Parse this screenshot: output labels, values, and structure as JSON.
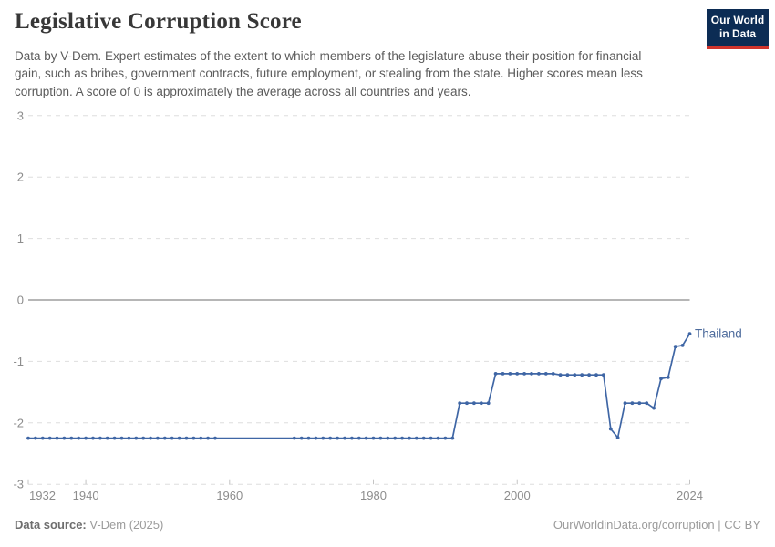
{
  "header": {
    "title": "Legislative Corruption Score",
    "subtitle": "Data by V-Dem. Expert estimates of the extent to which members of the legislature abuse their position for financial gain, such as bribes, government contracts, future employment, or stealing from the state. Higher scores mean less corruption. A score of 0 is approximately the average across all countries and years.",
    "logo": {
      "line1": "Our World",
      "line2": "in Data"
    }
  },
  "footer": {
    "source_label": "Data source:",
    "source_value": " V-Dem (2025)",
    "right_text": "OurWorldinData.org/corruption | CC BY"
  },
  "colors": {
    "series_line": "#3f66a5",
    "series_label": "#4d6b9c",
    "gridline": "#dedede",
    "zero_line": "#9e9e9e",
    "axis_label": "#8d8d8d",
    "tick_mark": "#c4c4c4",
    "logo_bg": "#0c2c54",
    "logo_stripe": "#d0342c",
    "title_text": "#373737",
    "subtitle_text": "#5b5b5b"
  },
  "chart_data": {
    "type": "line",
    "title": "Legislative Corruption Score",
    "xlabel": "",
    "ylabel": "",
    "xlim": [
      1932,
      2024
    ],
    "ylim": [
      -3,
      3
    ],
    "yticks": [
      3,
      2,
      1,
      0,
      -1,
      -2,
      -3
    ],
    "xticks": [
      1932,
      1940,
      1960,
      1980,
      2000,
      2024
    ],
    "grid": "horizontal-dashed",
    "zero_line": true,
    "legend_position": "end-of-line-label",
    "marker_gap_years": [
      1959,
      1968
    ],
    "series": [
      {
        "name": "Thailand",
        "color": "#3f66a5",
        "points": [
          [
            1932,
            -2.25
          ],
          [
            1933,
            -2.25
          ],
          [
            1934,
            -2.25
          ],
          [
            1935,
            -2.25
          ],
          [
            1936,
            -2.25
          ],
          [
            1937,
            -2.25
          ],
          [
            1938,
            -2.25
          ],
          [
            1939,
            -2.25
          ],
          [
            1940,
            -2.25
          ],
          [
            1941,
            -2.25
          ],
          [
            1942,
            -2.25
          ],
          [
            1943,
            -2.25
          ],
          [
            1944,
            -2.25
          ],
          [
            1945,
            -2.25
          ],
          [
            1946,
            -2.25
          ],
          [
            1947,
            -2.25
          ],
          [
            1948,
            -2.25
          ],
          [
            1949,
            -2.25
          ],
          [
            1950,
            -2.25
          ],
          [
            1951,
            -2.25
          ],
          [
            1952,
            -2.25
          ],
          [
            1953,
            -2.25
          ],
          [
            1954,
            -2.25
          ],
          [
            1955,
            -2.25
          ],
          [
            1956,
            -2.25
          ],
          [
            1957,
            -2.25
          ],
          [
            1958,
            -2.25
          ],
          [
            1959,
            -2.25
          ],
          [
            1960,
            -2.25
          ],
          [
            1961,
            -2.25
          ],
          [
            1962,
            -2.25
          ],
          [
            1963,
            -2.25
          ],
          [
            1964,
            -2.25
          ],
          [
            1965,
            -2.25
          ],
          [
            1966,
            -2.25
          ],
          [
            1967,
            -2.25
          ],
          [
            1968,
            -2.25
          ],
          [
            1969,
            -2.25
          ],
          [
            1970,
            -2.25
          ],
          [
            1971,
            -2.25
          ],
          [
            1972,
            -2.25
          ],
          [
            1973,
            -2.25
          ],
          [
            1974,
            -2.25
          ],
          [
            1975,
            -2.25
          ],
          [
            1976,
            -2.25
          ],
          [
            1977,
            -2.25
          ],
          [
            1978,
            -2.25
          ],
          [
            1979,
            -2.25
          ],
          [
            1980,
            -2.25
          ],
          [
            1981,
            -2.25
          ],
          [
            1982,
            -2.25
          ],
          [
            1983,
            -2.25
          ],
          [
            1984,
            -2.25
          ],
          [
            1985,
            -2.25
          ],
          [
            1986,
            -2.25
          ],
          [
            1987,
            -2.25
          ],
          [
            1988,
            -2.25
          ],
          [
            1989,
            -2.25
          ],
          [
            1990,
            -2.25
          ],
          [
            1991,
            -2.25
          ],
          [
            1992,
            -1.68
          ],
          [
            1993,
            -1.68
          ],
          [
            1994,
            -1.68
          ],
          [
            1995,
            -1.68
          ],
          [
            1996,
            -1.68
          ],
          [
            1997,
            -1.2
          ],
          [
            1998,
            -1.2
          ],
          [
            1999,
            -1.2
          ],
          [
            2000,
            -1.2
          ],
          [
            2001,
            -1.2
          ],
          [
            2002,
            -1.2
          ],
          [
            2003,
            -1.2
          ],
          [
            2004,
            -1.2
          ],
          [
            2005,
            -1.2
          ],
          [
            2006,
            -1.22
          ],
          [
            2007,
            -1.22
          ],
          [
            2008,
            -1.22
          ],
          [
            2009,
            -1.22
          ],
          [
            2010,
            -1.22
          ],
          [
            2011,
            -1.22
          ],
          [
            2012,
            -1.22
          ],
          [
            2013,
            -2.1
          ],
          [
            2014,
            -2.24
          ],
          [
            2015,
            -1.68
          ],
          [
            2016,
            -1.68
          ],
          [
            2017,
            -1.68
          ],
          [
            2018,
            -1.68
          ],
          [
            2019,
            -1.76
          ],
          [
            2020,
            -1.28
          ],
          [
            2021,
            -1.26
          ],
          [
            2022,
            -0.76
          ],
          [
            2023,
            -0.74
          ],
          [
            2024,
            -0.55
          ]
        ]
      }
    ]
  }
}
